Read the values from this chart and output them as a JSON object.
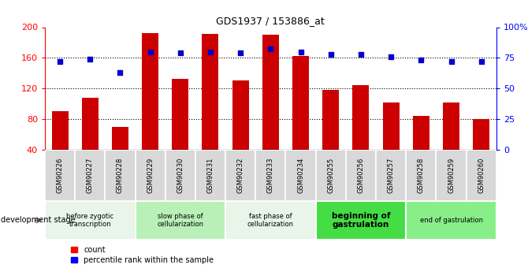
{
  "title": "GDS1937 / 153886_at",
  "samples": [
    "GSM90226",
    "GSM90227",
    "GSM90228",
    "GSM90229",
    "GSM90230",
    "GSM90231",
    "GSM90232",
    "GSM90233",
    "GSM90234",
    "GSM90255",
    "GSM90256",
    "GSM90257",
    "GSM90258",
    "GSM90259",
    "GSM90260"
  ],
  "counts": [
    90,
    108,
    70,
    192,
    132,
    191,
    130,
    190,
    162,
    118,
    124,
    102,
    84,
    102,
    80
  ],
  "percentiles": [
    72,
    74,
    63,
    80,
    79,
    80,
    79,
    82,
    80,
    78,
    78,
    76,
    73,
    72,
    72
  ],
  "bar_color": "#cc0000",
  "dot_color": "#0000cc",
  "ylim_left": [
    40,
    200
  ],
  "ylim_right": [
    0,
    100
  ],
  "yticks_left": [
    40,
    80,
    120,
    160,
    200
  ],
  "yticks_right": [
    0,
    25,
    50,
    75,
    100
  ],
  "ytick_labels_right": [
    "0",
    "25",
    "50",
    "75",
    "100%"
  ],
  "grid_values": [
    80,
    120,
    160
  ],
  "stage_groups": [
    {
      "label": "before zygotic\ntranscription",
      "indices": [
        0,
        1,
        2
      ],
      "color": "#e8f5e8",
      "bold": false
    },
    {
      "label": "slow phase of\ncellularization",
      "indices": [
        3,
        4,
        5
      ],
      "color": "#b8f0b8",
      "bold": false
    },
    {
      "label": "fast phase of\ncellularization",
      "indices": [
        6,
        7,
        8
      ],
      "color": "#e8f5e8",
      "bold": false
    },
    {
      "label": "beginning of\ngastrulation",
      "indices": [
        9,
        10,
        11
      ],
      "color": "#44dd44",
      "bold": true
    },
    {
      "label": "end of gastrulation",
      "indices": [
        12,
        13,
        14
      ],
      "color": "#88ee88",
      "bold": false
    }
  ],
  "left_label": "development stage",
  "legend_count_label": "count",
  "legend_pct_label": "percentile rank within the sample",
  "bar_width": 0.55,
  "sample_box_color": "#d8d8d8",
  "background_color": "#ffffff"
}
